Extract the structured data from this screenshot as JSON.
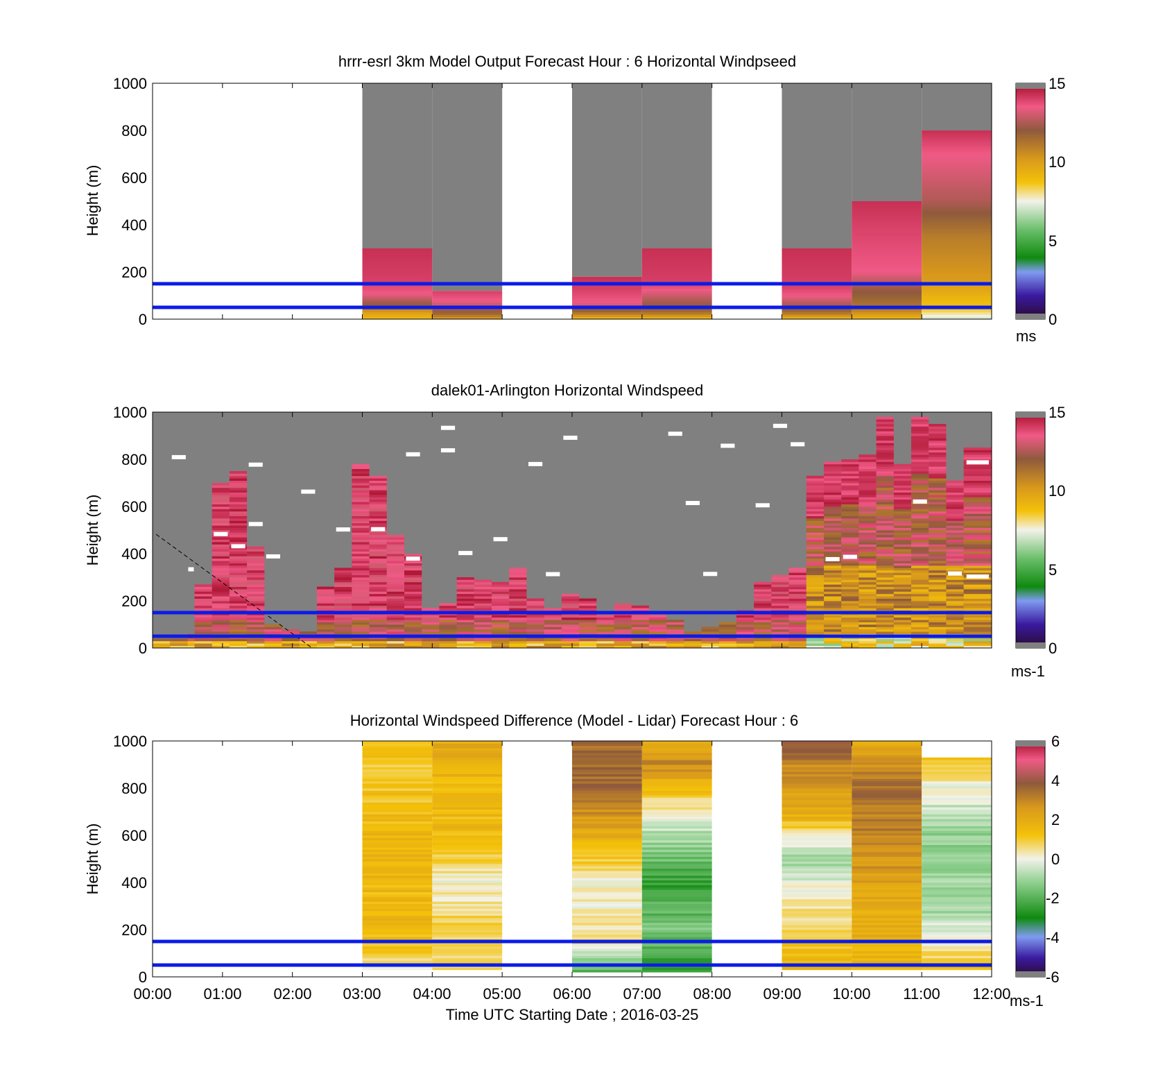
{
  "figure": {
    "xlabel": "Time UTC  Starting Date ; 2016-03-25",
    "xticks": [
      "00:00",
      "01:00",
      "02:00",
      "03:00",
      "04:00",
      "05:00",
      "06:00",
      "07:00",
      "08:00",
      "09:00",
      "10:00",
      "11:00",
      "12:00"
    ],
    "reference_lines_m": [
      50,
      150
    ],
    "reference_line_color": "#0b1be6",
    "missing_color": "#808080"
  },
  "chart_data": [
    {
      "type": "heatmap",
      "title": "hrrr-esrl 3km Model Output   Forecast Hour : 6 Horizontal Windpseed",
      "ylabel": "Height (m)",
      "ylim": [
        0,
        1000
      ],
      "yticks": [
        0,
        200,
        400,
        600,
        800,
        1000
      ],
      "xlim_hours": [
        0,
        12
      ],
      "colorbar": {
        "min": 0,
        "max": 15,
        "ticks": [
          0,
          5,
          10,
          15
        ],
        "unit": "ms"
      },
      "columns": [
        {
          "t0": 3,
          "t1": 4,
          "top_m": 300,
          "profile": [
            [
              0,
              9
            ],
            [
              30,
              10
            ],
            [
              60,
              12
            ],
            [
              110,
              13.5
            ],
            [
              160,
              14
            ],
            [
              300,
              14.3
            ]
          ]
        },
        {
          "t0": 4,
          "t1": 5,
          "top_m": 120,
          "profile": [
            [
              0,
              10
            ],
            [
              30,
              12
            ],
            [
              80,
              13.5
            ],
            [
              120,
              14
            ]
          ]
        },
        {
          "t0": 6,
          "t1": 7,
          "top_m": 180,
          "profile": [
            [
              0,
              9
            ],
            [
              30,
              11.5
            ],
            [
              70,
              13.5
            ],
            [
              130,
              14
            ],
            [
              180,
              14.3
            ]
          ]
        },
        {
          "t0": 7,
          "t1": 8,
          "top_m": 300,
          "profile": [
            [
              0,
              9
            ],
            [
              30,
              11.5
            ],
            [
              80,
              12.5
            ],
            [
              150,
              14
            ],
            [
              300,
              14.3
            ]
          ]
        },
        {
          "t0": 9,
          "t1": 10,
          "top_m": 300,
          "profile": [
            [
              0,
              9
            ],
            [
              30,
              11.5
            ],
            [
              100,
              13.5
            ],
            [
              140,
              14
            ],
            [
              300,
              14.3
            ]
          ]
        },
        {
          "t0": 10,
          "t1": 11,
          "top_m": 500,
          "profile": [
            [
              0,
              9
            ],
            [
              40,
              11
            ],
            [
              150,
              12.5
            ],
            [
              200,
              13.5
            ],
            [
              400,
              14
            ],
            [
              500,
              14.3
            ]
          ]
        },
        {
          "t0": 11,
          "t1": 12,
          "top_m": 800,
          "profile": [
            [
              0,
              7
            ],
            [
              40,
              8.5
            ],
            [
              150,
              10
            ],
            [
              350,
              11
            ],
            [
              500,
              12.5
            ],
            [
              700,
              13.5
            ],
            [
              800,
              14.3
            ]
          ]
        }
      ]
    },
    {
      "type": "heatmap",
      "title": "dalek01-Arlington  Horizontal Windspeed",
      "ylabel": "Height (m)",
      "ylim": [
        0,
        1000
      ],
      "yticks": [
        0,
        200,
        400,
        600,
        800,
        1000
      ],
      "xlim_hours": [
        0,
        12
      ],
      "colorbar": {
        "min": 0,
        "max": 15,
        "ticks": [
          0,
          5,
          10,
          15
        ],
        "unit": "ms-1"
      },
      "columns_4min": [
        {
          "t": 0.0,
          "top_m": 40
        },
        {
          "t": 0.25,
          "top_m": 40
        },
        {
          "t": 0.5,
          "top_m": 60
        },
        {
          "t": 0.6,
          "top_m": 270
        },
        {
          "t": 0.85,
          "top_m": 700
        },
        {
          "t": 1.1,
          "top_m": 750
        },
        {
          "t": 1.35,
          "top_m": 430
        },
        {
          "t": 1.6,
          "top_m": 100
        },
        {
          "t": 1.85,
          "top_m": 80
        },
        {
          "t": 2.1,
          "top_m": 70
        },
        {
          "t": 2.35,
          "top_m": 260
        },
        {
          "t": 2.6,
          "top_m": 340
        },
        {
          "t": 2.85,
          "top_m": 780
        },
        {
          "t": 3.1,
          "top_m": 730
        },
        {
          "t": 3.35,
          "top_m": 480
        },
        {
          "t": 3.6,
          "top_m": 400
        },
        {
          "t": 3.85,
          "top_m": 170
        },
        {
          "t": 4.1,
          "top_m": 190
        },
        {
          "t": 4.35,
          "top_m": 300
        },
        {
          "t": 4.6,
          "top_m": 290
        },
        {
          "t": 4.85,
          "top_m": 280
        },
        {
          "t": 5.1,
          "top_m": 340
        },
        {
          "t": 5.35,
          "top_m": 210
        },
        {
          "t": 5.6,
          "top_m": 170
        },
        {
          "t": 5.85,
          "top_m": 230
        },
        {
          "t": 6.1,
          "top_m": 210
        },
        {
          "t": 6.35,
          "top_m": 140
        },
        {
          "t": 6.6,
          "top_m": 190
        },
        {
          "t": 6.85,
          "top_m": 180
        },
        {
          "t": 7.1,
          "top_m": 140
        },
        {
          "t": 7.35,
          "top_m": 120
        },
        {
          "t": 7.6,
          "top_m": 70
        },
        {
          "t": 7.85,
          "top_m": 90
        },
        {
          "t": 8.1,
          "top_m": 110
        },
        {
          "t": 8.35,
          "top_m": 160
        },
        {
          "t": 8.6,
          "top_m": 280
        },
        {
          "t": 8.85,
          "top_m": 310
        },
        {
          "t": 9.1,
          "top_m": 340
        },
        {
          "t": 9.35,
          "top_m": 730
        },
        {
          "t": 9.6,
          "top_m": 790
        },
        {
          "t": 9.85,
          "top_m": 800
        },
        {
          "t": 10.1,
          "top_m": 820
        },
        {
          "t": 10.35,
          "top_m": 980
        },
        {
          "t": 10.6,
          "top_m": 780
        },
        {
          "t": 10.85,
          "top_m": 980
        },
        {
          "t": 11.1,
          "top_m": 950
        },
        {
          "t": 11.35,
          "top_m": 710
        },
        {
          "t": 11.6,
          "top_m": 850
        }
      ]
    },
    {
      "type": "heatmap",
      "title": "Horizontal Windspeed Difference (Model - Lidar) Forecast Hour : 6",
      "ylabel": "Height (m)",
      "xlabel": "Time UTC  Starting Date ; 2016-03-25",
      "ylim": [
        0,
        1000
      ],
      "yticks": [
        0,
        200,
        400,
        600,
        800,
        1000
      ],
      "xlim_hours": [
        0,
        12
      ],
      "colorbar": {
        "min": -6,
        "max": 6,
        "ticks": [
          -6,
          -4,
          -2,
          0,
          2,
          4,
          6
        ],
        "unit": "ms-1"
      },
      "columns": [
        {
          "t0": 3,
          "t1": 4,
          "bottom_m": 30,
          "top_m": 1000,
          "profile": [
            [
              30,
              0
            ],
            [
              100,
              1
            ],
            [
              200,
              1.5
            ],
            [
              600,
              1.5
            ],
            [
              900,
              1
            ],
            [
              1000,
              1.5
            ]
          ]
        },
        {
          "t0": 4,
          "t1": 5,
          "bottom_m": 30,
          "top_m": 1000,
          "profile": [
            [
              30,
              0.5
            ],
            [
              200,
              1
            ],
            [
              400,
              0
            ],
            [
              600,
              1.5
            ],
            [
              800,
              1.5
            ],
            [
              1000,
              2
            ]
          ]
        },
        {
          "t0": 6,
          "t1": 7,
          "bottom_m": 20,
          "top_m": 1000,
          "profile": [
            [
              20,
              -2
            ],
            [
              150,
              0.5
            ],
            [
              400,
              0
            ],
            [
              600,
              2
            ],
            [
              800,
              3.5
            ],
            [
              1000,
              3.5
            ]
          ]
        },
        {
          "t0": 7,
          "t1": 8,
          "bottom_m": 20,
          "top_m": 1000,
          "profile": [
            [
              20,
              -2.5
            ],
            [
              200,
              -1.5
            ],
            [
              400,
              -2.5
            ],
            [
              700,
              0
            ],
            [
              900,
              3
            ],
            [
              1000,
              2
            ]
          ]
        },
        {
          "t0": 9,
          "t1": 10,
          "bottom_m": 30,
          "top_m": 1000,
          "profile": [
            [
              30,
              1.5
            ],
            [
              300,
              0.5
            ],
            [
              500,
              -1
            ],
            [
              700,
              2
            ],
            [
              900,
              3
            ],
            [
              1000,
              4
            ]
          ]
        },
        {
          "t0": 10,
          "t1": 11,
          "bottom_m": 30,
          "top_m": 1000,
          "profile": [
            [
              30,
              1.5
            ],
            [
              300,
              2
            ],
            [
              600,
              3
            ],
            [
              800,
              3.5
            ],
            [
              1000,
              2
            ]
          ]
        },
        {
          "t0": 11,
          "t1": 12,
          "bottom_m": 30,
          "top_m": 930,
          "profile": [
            [
              30,
              1.5
            ],
            [
              150,
              0
            ],
            [
              300,
              -1
            ],
            [
              600,
              -1.2
            ],
            [
              800,
              0
            ],
            [
              930,
              1
            ]
          ]
        }
      ]
    }
  ]
}
